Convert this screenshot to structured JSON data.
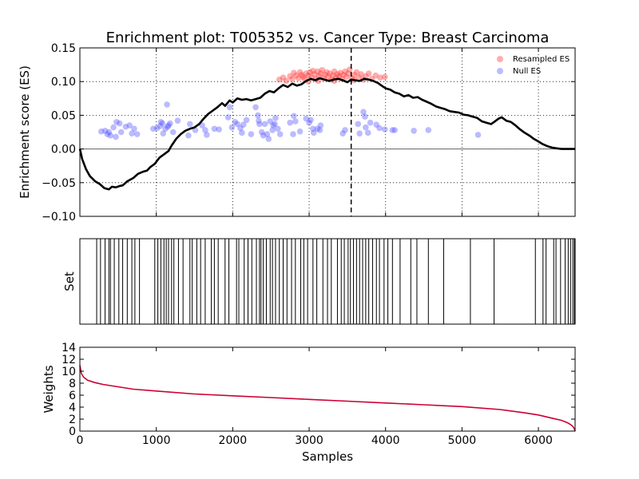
{
  "chart_data": [
    {
      "panel": "enrichment",
      "type": "scatter",
      "title": "Enrichment plot: T005352 vs. Cancer Type: Breast Carcinoma",
      "xlabel": "",
      "ylabel": "Enrichment score (ES)",
      "xlim": [
        0,
        6480
      ],
      "ylim": [
        -0.1,
        0.15
      ],
      "yticks": [
        -0.1,
        -0.05,
        0.0,
        0.05,
        0.1,
        0.15
      ],
      "ytick_labels": [
        "−0.10",
        "−0.05",
        "0.00",
        "0.05",
        "0.10",
        "0.15"
      ],
      "xticks": [
        0,
        1000,
        2000,
        3000,
        4000,
        5000,
        6000
      ],
      "grid": true,
      "legend_position": "top-right",
      "peak_x": 3550,
      "running_es": {
        "x": [
          0,
          30,
          80,
          130,
          200,
          260,
          320,
          380,
          420,
          470,
          520,
          560,
          620,
          700,
          760,
          820,
          880,
          920,
          980,
          1040,
          1100,
          1160,
          1200,
          1260,
          1320,
          1380,
          1440,
          1500,
          1560,
          1620,
          1680,
          1740,
          1800,
          1860,
          1900,
          1960,
          2000,
          2060,
          2120,
          2180,
          2240,
          2300,
          2360,
          2420,
          2480,
          2540,
          2600,
          2660,
          2720,
          2780,
          2840,
          2900,
          2960,
          3020,
          3080,
          3140,
          3200,
          3260,
          3320,
          3380,
          3440,
          3500,
          3550,
          3600,
          3660,
          3720,
          3780,
          3840,
          3900,
          3960,
          4000,
          4060,
          4120,
          4180,
          4240,
          4300,
          4360,
          4420,
          4480,
          4540,
          4600,
          4660,
          4720,
          4780,
          4840,
          4900,
          4960,
          5020,
          5080,
          5140,
          5200,
          5260,
          5320,
          5380,
          5420,
          5480,
          5520,
          5580,
          5640,
          5700,
          5760,
          5820,
          5880,
          5940,
          6000,
          6060,
          6120,
          6180,
          6240,
          6300,
          6360,
          6420,
          6480
        ],
        "y": [
          0.0,
          -0.015,
          -0.03,
          -0.04,
          -0.048,
          -0.052,
          -0.058,
          -0.06,
          -0.056,
          -0.057,
          -0.055,
          -0.054,
          -0.048,
          -0.043,
          -0.037,
          -0.034,
          -0.032,
          -0.027,
          -0.022,
          -0.013,
          -0.008,
          -0.003,
          0.005,
          0.015,
          0.022,
          0.027,
          0.03,
          0.032,
          0.037,
          0.045,
          0.052,
          0.057,
          0.062,
          0.068,
          0.064,
          0.072,
          0.069,
          0.075,
          0.073,
          0.074,
          0.072,
          0.074,
          0.076,
          0.082,
          0.086,
          0.084,
          0.09,
          0.095,
          0.092,
          0.097,
          0.094,
          0.096,
          0.101,
          0.104,
          0.102,
          0.105,
          0.103,
          0.101,
          0.103,
          0.104,
          0.102,
          0.099,
          0.103,
          0.102,
          0.101,
          0.104,
          0.103,
          0.101,
          0.098,
          0.093,
          0.09,
          0.088,
          0.084,
          0.082,
          0.078,
          0.08,
          0.076,
          0.077,
          0.073,
          0.07,
          0.067,
          0.063,
          0.061,
          0.059,
          0.056,
          0.055,
          0.054,
          0.051,
          0.05,
          0.048,
          0.046,
          0.041,
          0.039,
          0.037,
          0.04,
          0.045,
          0.047,
          0.042,
          0.04,
          0.035,
          0.029,
          0.024,
          0.02,
          0.015,
          0.011,
          0.007,
          0.004,
          0.002,
          0.001,
          0.0,
          0.0,
          0.0,
          0.0
        ]
      },
      "series": [
        {
          "name": "Resampled ES",
          "color": "#ff3333",
          "points": [
            [
              2610,
              0.103
            ],
            [
              2660,
              0.106
            ],
            [
              2700,
              0.101
            ],
            [
              2750,
              0.108
            ],
            [
              2780,
              0.104
            ],
            [
              2800,
              0.113
            ],
            [
              2830,
              0.109
            ],
            [
              2860,
              0.105
            ],
            [
              2880,
              0.114
            ],
            [
              2900,
              0.11
            ],
            [
              2920,
              0.107
            ],
            [
              2940,
              0.104
            ],
            [
              2960,
              0.112
            ],
            [
              2990,
              0.109
            ],
            [
              3010,
              0.114
            ],
            [
              3030,
              0.106
            ],
            [
              3050,
              0.116
            ],
            [
              3070,
              0.111
            ],
            [
              3090,
              0.104
            ],
            [
              3110,
              0.115
            ],
            [
              3130,
              0.108
            ],
            [
              3150,
              0.112
            ],
            [
              3170,
              0.117
            ],
            [
              3190,
              0.105
            ],
            [
              3210,
              0.11
            ],
            [
              3230,
              0.114
            ],
            [
              3250,
              0.107
            ],
            [
              3270,
              0.112
            ],
            [
              3290,
              0.103
            ],
            [
              3310,
              0.109
            ],
            [
              3330,
              0.115
            ],
            [
              3350,
              0.106
            ],
            [
              3370,
              0.111
            ],
            [
              3390,
              0.108
            ],
            [
              3410,
              0.113
            ],
            [
              3430,
              0.104
            ],
            [
              3450,
              0.11
            ],
            [
              3470,
              0.115
            ],
            [
              3490,
              0.107
            ],
            [
              3510,
              0.112
            ],
            [
              3530,
              0.118
            ],
            [
              3560,
              0.105
            ],
            [
              3590,
              0.11
            ],
            [
              3620,
              0.114
            ],
            [
              3650,
              0.106
            ],
            [
              3680,
              0.111
            ],
            [
              3710,
              0.103
            ],
            [
              3740,
              0.108
            ],
            [
              3780,
              0.112
            ],
            [
              3820,
              0.104
            ],
            [
              3870,
              0.109
            ],
            [
              3930,
              0.106
            ],
            [
              3990,
              0.107
            ],
            [
              3120,
              0.101
            ],
            [
              2990,
              0.1
            ],
            [
              3330,
              0.101
            ],
            [
              3590,
              0.102
            ]
          ]
        },
        {
          "name": "Null ES",
          "color": "#5555ff",
          "points": [
            [
              280,
              0.026
            ],
            [
              330,
              0.027
            ],
            [
              360,
              0.022
            ],
            [
              380,
              0.025
            ],
            [
              400,
              0.02
            ],
            [
              440,
              0.032
            ],
            [
              470,
              0.018
            ],
            [
              480,
              0.04
            ],
            [
              520,
              0.038
            ],
            [
              540,
              0.025
            ],
            [
              600,
              0.033
            ],
            [
              650,
              0.035
            ],
            [
              680,
              0.023
            ],
            [
              710,
              0.03
            ],
            [
              750,
              0.022
            ],
            [
              960,
              0.03
            ],
            [
              1010,
              0.031
            ],
            [
              1050,
              0.034
            ],
            [
              1060,
              0.04
            ],
            [
              1080,
              0.038
            ],
            [
              1090,
              0.023
            ],
            [
              1120,
              0.03
            ],
            [
              1140,
              0.066
            ],
            [
              1150,
              0.033
            ],
            [
              1160,
              0.035
            ],
            [
              1180,
              0.038
            ],
            [
              1220,
              0.025
            ],
            [
              1280,
              0.042
            ],
            [
              1420,
              0.02
            ],
            [
              1440,
              0.037
            ],
            [
              1510,
              0.028
            ],
            [
              1600,
              0.035
            ],
            [
              1640,
              0.028
            ],
            [
              1660,
              0.021
            ],
            [
              1760,
              0.03
            ],
            [
              1820,
              0.029
            ],
            [
              1940,
              0.047
            ],
            [
              1960,
              0.062
            ],
            [
              1990,
              0.032
            ],
            [
              2030,
              0.04
            ],
            [
              2060,
              0.037
            ],
            [
              2100,
              0.031
            ],
            [
              2120,
              0.024
            ],
            [
              2140,
              0.036
            ],
            [
              2180,
              0.043
            ],
            [
              2240,
              0.022
            ],
            [
              2300,
              0.062
            ],
            [
              2330,
              0.05
            ],
            [
              2340,
              0.042
            ],
            [
              2350,
              0.037
            ],
            [
              2380,
              0.025
            ],
            [
              2400,
              0.02
            ],
            [
              2420,
              0.037
            ],
            [
              2450,
              0.022
            ],
            [
              2470,
              0.015
            ],
            [
              2490,
              0.041
            ],
            [
              2520,
              0.028
            ],
            [
              2530,
              0.035
            ],
            [
              2550,
              0.037
            ],
            [
              2560,
              0.046
            ],
            [
              2590,
              0.03
            ],
            [
              2620,
              0.022
            ],
            [
              2750,
              0.039
            ],
            [
              2790,
              0.022
            ],
            [
              2800,
              0.049
            ],
            [
              2820,
              0.041
            ],
            [
              2880,
              0.026
            ],
            [
              2960,
              0.045
            ],
            [
              3000,
              0.039
            ],
            [
              3020,
              0.043
            ],
            [
              3050,
              0.03
            ],
            [
              3060,
              0.024
            ],
            [
              3110,
              0.03
            ],
            [
              3140,
              0.028
            ],
            [
              3150,
              0.035
            ],
            [
              3440,
              0.023
            ],
            [
              3470,
              0.028
            ],
            [
              3640,
              0.037
            ],
            [
              3660,
              0.023
            ],
            [
              3710,
              0.055
            ],
            [
              3730,
              0.048
            ],
            [
              3740,
              0.032
            ],
            [
              3770,
              0.024
            ],
            [
              3800,
              0.039
            ],
            [
              3880,
              0.036
            ],
            [
              3920,
              0.031
            ],
            [
              3990,
              0.029
            ],
            [
              4090,
              0.028
            ],
            [
              4120,
              0.028
            ],
            [
              4370,
              0.027
            ],
            [
              4560,
              0.028
            ],
            [
              5210,
              0.021
            ]
          ]
        }
      ]
    },
    {
      "panel": "set",
      "type": "barcode",
      "ylabel": "Set",
      "xlim": [
        0,
        6480
      ],
      "hits": [
        220,
        270,
        330,
        380,
        400,
        450,
        510,
        560,
        620,
        680,
        720,
        780,
        980,
        1020,
        1060,
        1100,
        1130,
        1160,
        1200,
        1230,
        1290,
        1350,
        1440,
        1470,
        1530,
        1580,
        1640,
        1720,
        1760,
        1810,
        1900,
        1950,
        2050,
        2080,
        2150,
        2200,
        2250,
        2310,
        2350,
        2370,
        2400,
        2440,
        2490,
        2520,
        2560,
        2610,
        2660,
        2710,
        2770,
        2820,
        2890,
        2930,
        2980,
        3050,
        3100,
        3180,
        3240,
        3290,
        3370,
        3420,
        3460,
        3510,
        3540,
        3580,
        3620,
        3660,
        3700,
        3740,
        3780,
        3830,
        3880,
        3920,
        3980,
        4030,
        4090,
        4190,
        4330,
        4410,
        4560,
        4760,
        5110,
        5420,
        5960,
        6060,
        6100,
        6200,
        6230,
        6290,
        6350,
        6390,
        6420,
        6450,
        6470
      ]
    },
    {
      "panel": "weights",
      "type": "line",
      "xlabel": "Samples",
      "ylabel": "Weights",
      "xlim": [
        0,
        6480
      ],
      "ylim": [
        0,
        14
      ],
      "yticks": [
        0,
        2,
        4,
        6,
        8,
        10,
        12,
        14
      ],
      "xticks": [
        0,
        1000,
        2000,
        3000,
        4000,
        5000,
        6000
      ],
      "grid": false,
      "color": "#cc0033",
      "x": [
        0,
        20,
        50,
        100,
        200,
        300,
        500,
        700,
        1000,
        1500,
        2000,
        2500,
        3000,
        3500,
        4000,
        4500,
        5000,
        5500,
        5800,
        6000,
        6200,
        6300,
        6380,
        6420,
        6450,
        6470,
        6480
      ],
      "y": [
        11.0,
        9.6,
        9.0,
        8.5,
        8.1,
        7.8,
        7.4,
        7.0,
        6.7,
        6.2,
        5.9,
        5.6,
        5.3,
        5.0,
        4.7,
        4.4,
        4.1,
        3.6,
        3.1,
        2.7,
        2.1,
        1.8,
        1.4,
        1.1,
        0.8,
        0.4,
        0.0
      ]
    }
  ]
}
